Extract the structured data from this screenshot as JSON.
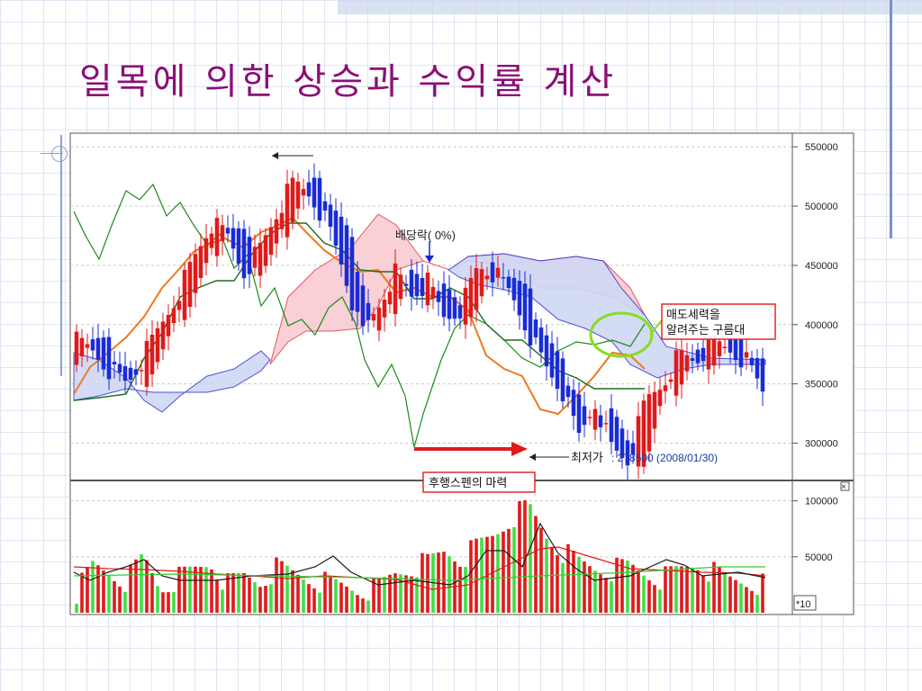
{
  "slide": {
    "title": "일목에 의한 상승과  수익률 계산"
  },
  "chart_data": {
    "type": "candlestick",
    "price_axis": {
      "ticks": [
        "550000",
        "500000",
        "450000",
        "400000",
        "350000",
        "300000"
      ],
      "range": [
        270000,
        560000
      ]
    },
    "volume_axis": {
      "ticks": [
        "100000",
        "50000"
      ],
      "range": [
        0,
        115000
      ],
      "multiplier_label": "*10"
    },
    "annotations": {
      "dividend": "배당락( 0%)",
      "sell_force_line1": "매도세력을",
      "sell_force_line2": "알려주는 구름대",
      "lowest_prefix": "최저가",
      "lowest_value": ": 278500 (2008/01/30)",
      "lagging_span": "후행스펜의 마력",
      "close_box": "×"
    },
    "ohlc_sample": [
      [
        375000,
        392000,
        370000,
        385000
      ],
      [
        388000,
        395000,
        380000,
        378000
      ],
      [
        380000,
        385000,
        360000,
        362000
      ],
      [
        365000,
        372000,
        345000,
        350000
      ],
      [
        352000,
        375000,
        350000,
        372000
      ],
      [
        375000,
        400000,
        372000,
        398000
      ],
      [
        400000,
        430000,
        395000,
        425000
      ],
      [
        425000,
        460000,
        420000,
        455000
      ],
      [
        455000,
        490000,
        450000,
        485000
      ],
      [
        485000,
        510000,
        470000,
        475000
      ],
      [
        475000,
        480000,
        440000,
        445000
      ],
      [
        445000,
        470000,
        440000,
        465000
      ],
      [
        465000,
        500000,
        460000,
        495000
      ],
      [
        495000,
        530000,
        490000,
        520000
      ],
      [
        520000,
        548000,
        505000,
        510000
      ],
      [
        510000,
        515000,
        480000,
        485000
      ],
      [
        485000,
        490000,
        440000,
        445000
      ],
      [
        445000,
        455000,
        380000,
        390000
      ],
      [
        390000,
        420000,
        385000,
        415000
      ],
      [
        415000,
        450000,
        410000,
        445000
      ],
      [
        445000,
        450000,
        420000,
        425000
      ],
      [
        425000,
        440000,
        415000,
        435000
      ],
      [
        435000,
        440000,
        400000,
        405000
      ],
      [
        405000,
        420000,
        392000,
        415000
      ],
      [
        415000,
        455000,
        410000,
        450000
      ],
      [
        450000,
        460000,
        440000,
        442000
      ],
      [
        442000,
        445000,
        420000,
        425000
      ],
      [
        425000,
        430000,
        390000,
        395000
      ],
      [
        395000,
        400000,
        360000,
        365000
      ],
      [
        365000,
        370000,
        340000,
        345000
      ],
      [
        345000,
        350000,
        300000,
        305000
      ],
      [
        305000,
        340000,
        300000,
        335000
      ],
      [
        335000,
        345000,
        290000,
        295000
      ],
      [
        295000,
        300000,
        278500,
        285000
      ],
      [
        285000,
        340000,
        282000,
        335000
      ],
      [
        335000,
        355000,
        330000,
        350000
      ],
      [
        350000,
        380000,
        345000,
        375000
      ],
      [
        375000,
        395000,
        365000,
        370000
      ],
      [
        370000,
        390000,
        360000,
        385000
      ],
      [
        385000,
        400000,
        375000,
        380000
      ],
      [
        380000,
        385000,
        365000,
        370000
      ],
      [
        370000,
        375000,
        340000,
        345000
      ]
    ],
    "volume_sample": [
      18,
      42,
      35,
      28,
      50,
      22,
      30,
      38,
      45,
      25,
      33,
      28,
      40,
      35,
      30,
      26,
      24,
      20,
      22,
      35,
      40,
      45,
      55,
      48,
      60,
      70,
      85,
      95,
      70,
      55,
      45,
      40,
      38,
      42,
      35,
      30,
      38,
      44,
      36,
      30,
      28,
      25
    ],
    "series": []
  }
}
